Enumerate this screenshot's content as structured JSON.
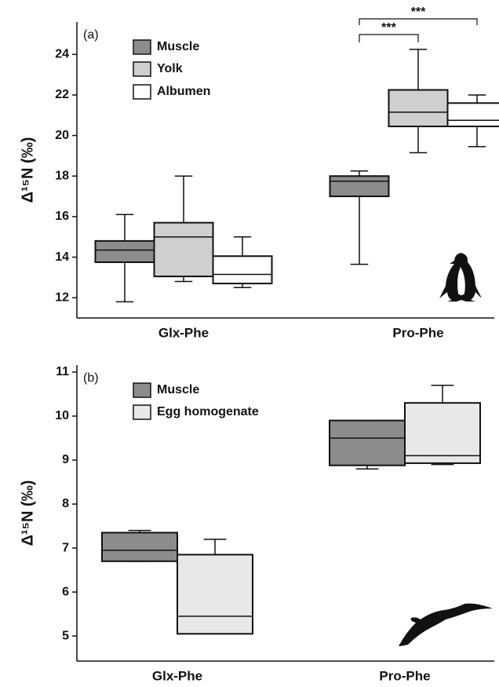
{
  "chart_data": [
    {
      "type": "box",
      "panel_label": "(a)",
      "ylabel": "Δ¹⁵N (‰)",
      "categories": [
        "Glx-Phe",
        "Pro-Phe"
      ],
      "ylim": [
        11,
        25.6
      ],
      "yticks": [
        12,
        14,
        16,
        18,
        20,
        22,
        24
      ],
      "series": [
        {
          "name": "Muscle",
          "color": "#8c8c8c",
          "values": [
            {
              "min": 11.8,
              "q1": 13.75,
              "median": 14.35,
              "q3": 14.8,
              "max": 16.1
            },
            {
              "min": 13.65,
              "q1": 17.0,
              "median": 17.75,
              "q3": 18.0,
              "max": 18.25
            }
          ]
        },
        {
          "name": "Yolk",
          "color": "#cfcfcf",
          "values": [
            {
              "min": 12.8,
              "q1": 13.05,
              "median": 15.0,
              "q3": 15.7,
              "max": 18.0
            },
            {
              "min": 19.15,
              "q1": 20.45,
              "median": 21.15,
              "q3": 22.25,
              "max": 24.25
            }
          ]
        },
        {
          "name": "Albumen",
          "color": "#ffffff",
          "values": [
            {
              "min": 12.5,
              "q1": 12.7,
              "median": 13.15,
              "q3": 14.05,
              "max": 15.0
            },
            {
              "min": 19.45,
              "q1": 20.45,
              "median": 20.75,
              "q3": 21.6,
              "max": 22.0
            }
          ]
        }
      ],
      "annotations": [
        "***",
        "***"
      ]
    },
    {
      "type": "box",
      "panel_label": "(b)",
      "ylabel": "Δ¹⁵N (‰)",
      "categories": [
        "Glx-Phe",
        "Pro-Phe"
      ],
      "ylim": [
        4.43,
        11.16
      ],
      "yticks": [
        5,
        6,
        7,
        8,
        9,
        10,
        11
      ],
      "series": [
        {
          "name": "Muscle",
          "color": "#8c8c8c",
          "values": [
            {
              "min": 6.7,
              "q1": 6.7,
              "median": 6.95,
              "q3": 7.35,
              "max": 7.4
            },
            {
              "min": 8.8,
              "q1": 8.88,
              "median": 9.5,
              "q3": 9.9,
              "max": 9.9
            }
          ]
        },
        {
          "name": "Egg homogenate",
          "color": "#e8e8e8",
          "values": [
            {
              "min": 5.05,
              "q1": 5.05,
              "median": 5.45,
              "q3": 6.85,
              "max": 7.2
            },
            {
              "min": 8.9,
              "q1": 8.93,
              "median": 9.1,
              "q3": 10.3,
              "max": 10.7
            }
          ]
        }
      ]
    }
  ]
}
